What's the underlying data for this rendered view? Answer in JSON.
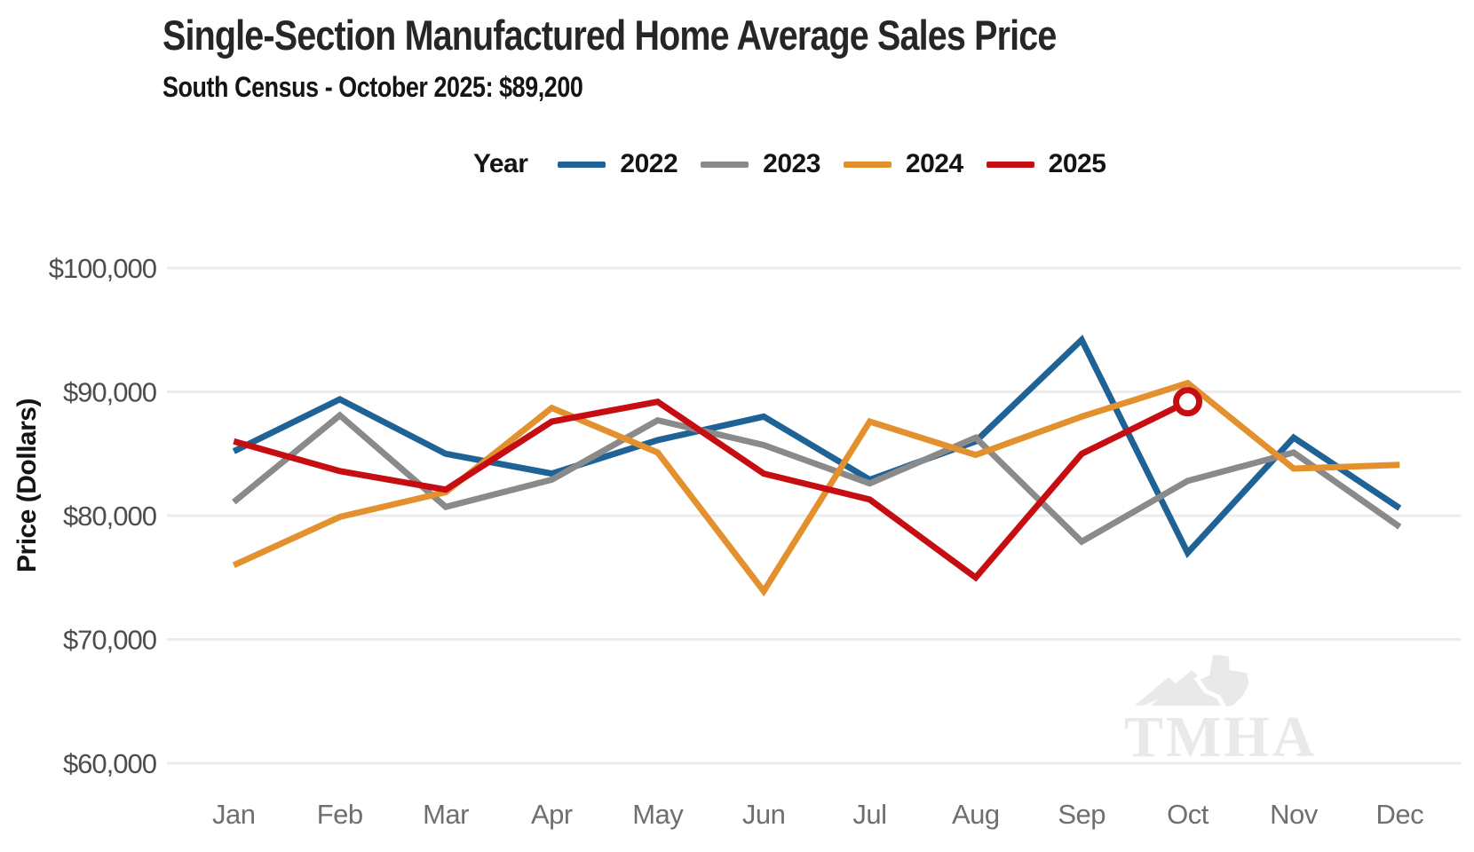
{
  "title": "Single-Section Manufactured Home Average Sales Price",
  "subtitle": "South Census - October 2025: $89,200",
  "legend": {
    "label": "Year",
    "items": [
      {
        "label": "2022",
        "color": "#1f6396"
      },
      {
        "label": "2023",
        "color": "#8a8a8a"
      },
      {
        "label": "2024",
        "color": "#e3902e"
      },
      {
        "label": "2025",
        "color": "#c60d12"
      }
    ]
  },
  "watermark": "TMHA",
  "chart_data": {
    "type": "line",
    "title": "Single-Section Manufactured Home Average Sales Price",
    "subtitle": "South Census - October 2025: $89,200",
    "xlabel": "",
    "ylabel": "Price (Dollars)",
    "categories": [
      "Jan",
      "Feb",
      "Mar",
      "Apr",
      "May",
      "Jun",
      "Jul",
      "Aug",
      "Sep",
      "Oct",
      "Nov",
      "Dec"
    ],
    "ylim": [
      60000,
      100000
    ],
    "yticks": [
      {
        "value": 100000,
        "label": "$100,000"
      },
      {
        "value": 90000,
        "label": "$90,000"
      },
      {
        "value": 80000,
        "label": "$80,000"
      },
      {
        "value": 70000,
        "label": "$70,000"
      },
      {
        "value": 60000,
        "label": "$60,000"
      }
    ],
    "grid": "horizontal",
    "grid_color": "#ececec",
    "legend_position": "top-center",
    "series": [
      {
        "name": "2022",
        "color": "#1f6396",
        "values": [
          85200,
          89400,
          85000,
          83400,
          86100,
          88000,
          82900,
          86000,
          94200,
          77000,
          86300,
          80600
        ]
      },
      {
        "name": "2023",
        "color": "#8a8a8a",
        "values": [
          81100,
          88100,
          80700,
          82900,
          87700,
          85700,
          82600,
          86300,
          77900,
          82800,
          85100,
          79100
        ]
      },
      {
        "name": "2024",
        "color": "#e3902e",
        "values": [
          76000,
          79900,
          81900,
          88700,
          85100,
          73900,
          87600,
          84900,
          88000,
          90700,
          83800,
          84100
        ]
      },
      {
        "name": "2025",
        "color": "#c60d12",
        "values": [
          86000,
          83600,
          82100,
          87600,
          89200,
          83400,
          81300,
          75000,
          85000,
          89200
        ],
        "end_marker": "open-circle"
      }
    ],
    "annotation": {
      "month": "Oct",
      "series": "2025",
      "value": 89200
    }
  }
}
